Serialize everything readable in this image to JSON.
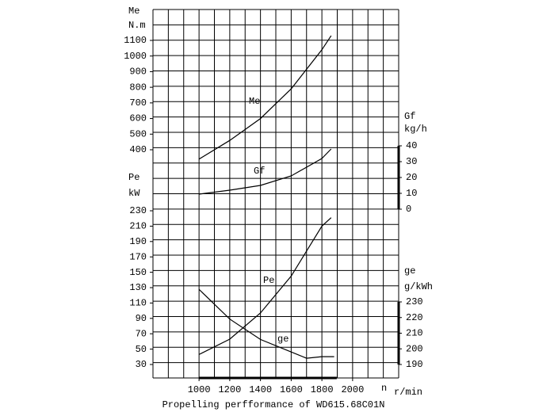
{
  "chart_data": {
    "type": "line",
    "title": "Propelling perfformance of WD615.68C01N",
    "xlabel": "n",
    "xunit": "r/min",
    "xlim": [
      700,
      2300
    ],
    "xticks": [
      1000,
      1200,
      1400,
      1600,
      1800,
      2000
    ],
    "series": [
      {
        "name": "Me",
        "ylabel": "Me",
        "yunit": "N.m",
        "axis_side": "left",
        "color": "#000000",
        "x": [
          1000,
          1200,
          1400,
          1600,
          1800,
          1860
        ],
        "values": [
          340,
          460,
          600,
          790,
          1040,
          1130
        ],
        "ylim": [
          400,
          1100
        ],
        "yticks": [
          400,
          500,
          600,
          700,
          800,
          900,
          1000,
          1100
        ]
      },
      {
        "name": "Gf",
        "ylabel": "Gf",
        "yunit": "kg/h",
        "axis_side": "right",
        "color": "#000000",
        "x": [
          1000,
          1200,
          1400,
          1600,
          1800,
          1860
        ],
        "values": [
          9.5,
          12,
          15,
          21,
          32,
          38
        ],
        "ylim": [
          0,
          40
        ],
        "yticks": [
          0,
          10,
          20,
          30,
          40
        ]
      },
      {
        "name": "Pe",
        "ylabel": "Pe",
        "yunit": "kW",
        "axis_side": "left",
        "color": "#000000",
        "x": [
          1000,
          1200,
          1400,
          1600,
          1800,
          1860
        ],
        "values": [
          43,
          63,
          97,
          145,
          210,
          221
        ],
        "ylim": [
          30,
          230
        ],
        "yticks": [
          30,
          50,
          70,
          90,
          110,
          130,
          150,
          170,
          190,
          210,
          230
        ]
      },
      {
        "name": "ge",
        "ylabel": "ge",
        "yunit": "g/kWh",
        "axis_side": "right",
        "color": "#000000",
        "x": [
          1000,
          1200,
          1400,
          1600,
          1700,
          1800,
          1880
        ],
        "values": [
          238,
          219,
          206,
          198,
          194,
          195,
          195
        ],
        "ylim": [
          190,
          230
        ],
        "yticks": [
          190,
          200,
          210,
          220,
          230
        ]
      }
    ]
  }
}
